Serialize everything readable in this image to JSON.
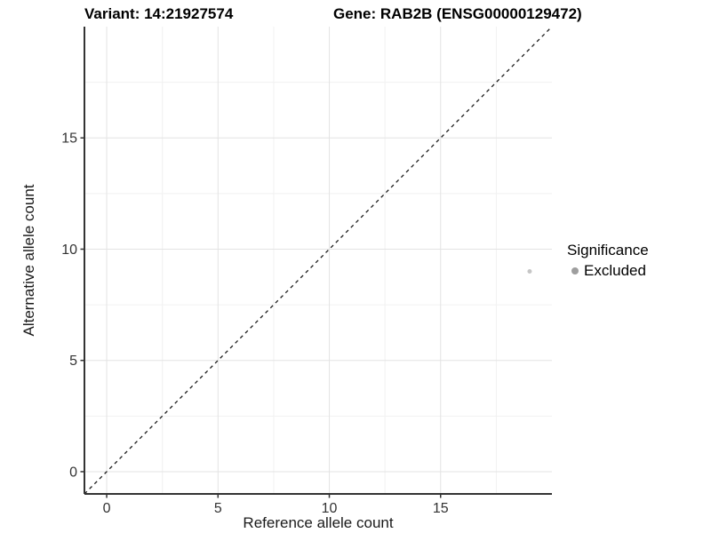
{
  "header": {
    "variant_title": "Variant: 14:21927574",
    "gene_title": "Gene: RAB2B (ENSG00000129472)"
  },
  "chart_data": {
    "type": "scatter",
    "title_parts": [
      "Variant: 14:21927574",
      "Gene: RAB2B (ENSG00000129472)"
    ],
    "xlabel": "Reference allele count",
    "ylabel": "Alternative allele count",
    "xlim": [
      -1,
      20
    ],
    "ylim": [
      -1,
      20
    ],
    "x_ticks": [
      0,
      5,
      10,
      15
    ],
    "y_ticks": [
      0,
      5,
      10,
      15
    ],
    "x_minor_ticks": [
      2.5,
      7.5,
      12.5,
      17.5
    ],
    "y_minor_ticks": [
      2.5,
      7.5,
      12.5,
      17.5
    ],
    "grid": {
      "major_color": "#e3e3e3",
      "minor_color": "#f1f1f1",
      "on": true
    },
    "axis_color": "#333333",
    "reference_line": {
      "kind": "identity",
      "from": [
        -1,
        -1
      ],
      "to": [
        20,
        20
      ],
      "style": "dashed",
      "color": "#1a1a1a"
    },
    "points": [
      {
        "x": 19,
        "y": 9,
        "series": "Excluded",
        "color": "#c6c6c6",
        "radius": 2.5
      }
    ],
    "legend": {
      "title": "Significance",
      "position": "right",
      "entries": [
        {
          "label": "Excluded",
          "color": "#9e9e9e"
        }
      ]
    }
  }
}
